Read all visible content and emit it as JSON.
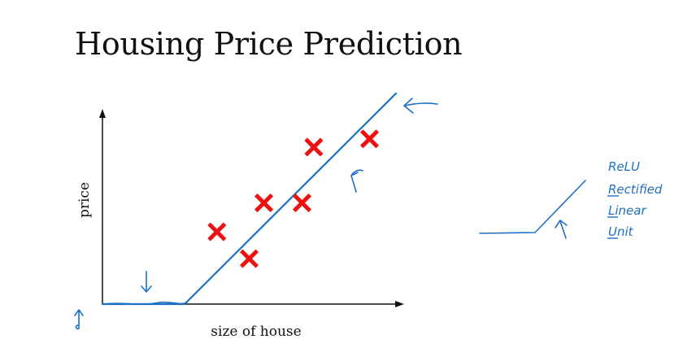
{
  "title": "Housing Price Prediction",
  "chart_data": {
    "type": "scatter",
    "title": "Housing Price Prediction",
    "xlabel": "size of house",
    "ylabel": "price",
    "xlim": [
      0,
      100
    ],
    "ylim": [
      0,
      100
    ],
    "grid": false,
    "points": [
      {
        "x": 39,
        "y": 35
      },
      {
        "x": 50,
        "y": 22
      },
      {
        "x": 55,
        "y": 49
      },
      {
        "x": 68,
        "y": 49
      },
      {
        "x": 72,
        "y": 76
      },
      {
        "x": 91,
        "y": 80
      }
    ],
    "fit_line": [
      {
        "x": 0,
        "y": 0
      },
      {
        "x": 28,
        "y": 0
      },
      {
        "x": 100,
        "y": 102
      }
    ],
    "marker_color": "#ee1111",
    "line_color": "#1f6fc4"
  },
  "notes": {
    "relu_lines": [
      "ReLU",
      "Rectified",
      "Linear",
      "Unit"
    ],
    "ink_color": "#1f6fc4"
  }
}
